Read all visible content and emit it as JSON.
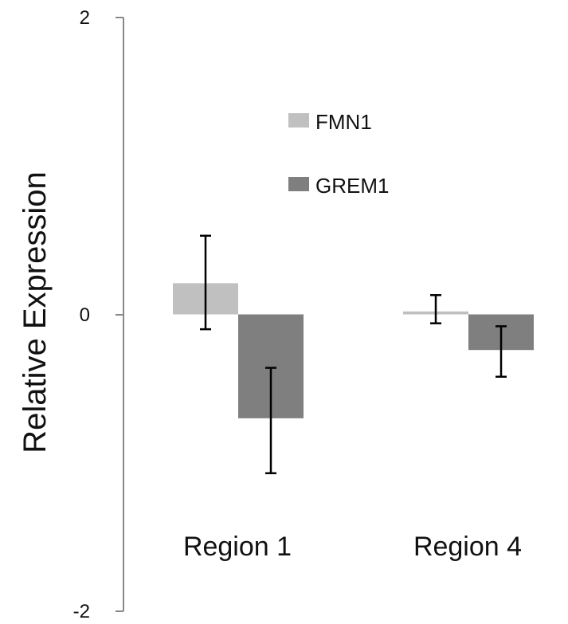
{
  "chart_data": {
    "type": "bar",
    "title": "",
    "xlabel": "",
    "ylabel": "Relative Expression",
    "ylim": [
      -2,
      2
    ],
    "yticks": [
      "2",
      "0",
      "-2"
    ],
    "categories": [
      "Region 1",
      "Region 4"
    ],
    "series": [
      {
        "name": "FMN1",
        "color": "#c0c0c0",
        "values": [
          0.21,
          0.02
        ],
        "err_low": [
          -0.1,
          -0.06
        ],
        "err_high": [
          0.53,
          0.13
        ]
      },
      {
        "name": "GREM1",
        "color": "#7f7f7f",
        "values": [
          -0.7,
          -0.24
        ],
        "err_low": [
          -1.07,
          -0.42
        ],
        "err_high": [
          -0.36,
          -0.08
        ]
      }
    ],
    "grid": false,
    "legend_position": "top-center"
  }
}
